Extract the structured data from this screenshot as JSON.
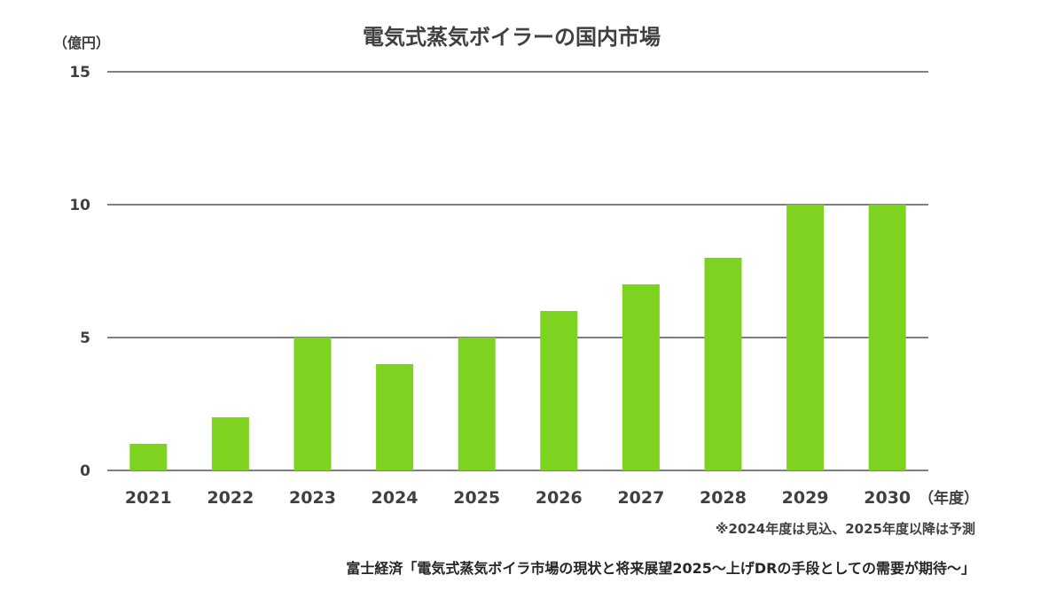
{
  "chart_data": {
    "type": "bar",
    "title": "電気式蒸気ボイラーの国内市場",
    "ylabel": "（億円）",
    "xlabel": "（年度）",
    "categories": [
      "2021",
      "2022",
      "2023",
      "2024",
      "2025",
      "2026",
      "2027",
      "2028",
      "2029",
      "2030"
    ],
    "series": [
      {
        "values": [
          1,
          2,
          5,
          4,
          5,
          6,
          7,
          8,
          10,
          10
        ]
      }
    ],
    "ylim": [
      0,
      15
    ],
    "yticks": [
      0,
      5,
      10,
      15
    ],
    "grid": true,
    "bar_color": "#7ED321",
    "grid_color": "#000000"
  },
  "footnote": "※2024年度は見込、2025年度以降は予測",
  "source": "富士経済「電気式蒸気ボイラ市場の現状と将来展望2025～上げDRの手段としての需要が期待～」"
}
